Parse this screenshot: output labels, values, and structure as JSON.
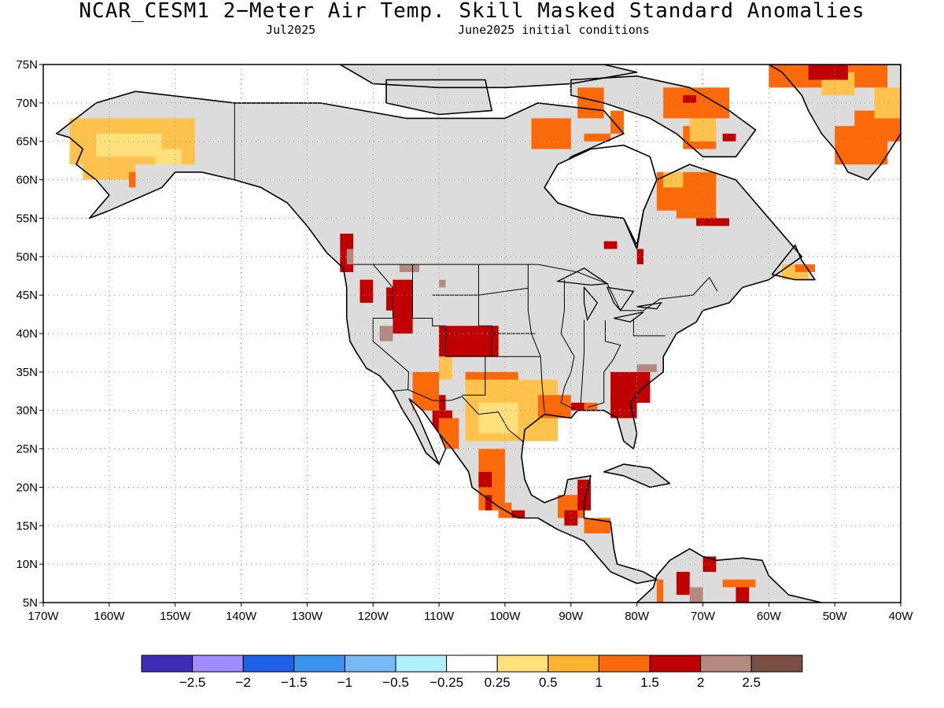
{
  "title": "NCAR_CESM1 2−Meter Air Temp. Skill Masked Standard Anomalies",
  "subtitle_month": "Jul2025",
  "subtitle_ic": "June2025 initial conditions",
  "map": {
    "lon_range": [
      -170,
      -40
    ],
    "lat_range": [
      5,
      75
    ],
    "grid": true,
    "mask_color": "#dcdcdc",
    "lat_ticks": [
      {
        "value": 75,
        "label": "75N"
      },
      {
        "value": 70,
        "label": "70N"
      },
      {
        "value": 65,
        "label": "65N"
      },
      {
        "value": 60,
        "label": "60N"
      },
      {
        "value": 55,
        "label": "55N"
      },
      {
        "value": 50,
        "label": "50N"
      },
      {
        "value": 45,
        "label": "45N"
      },
      {
        "value": 40,
        "label": "40N"
      },
      {
        "value": 35,
        "label": "35N"
      },
      {
        "value": 30,
        "label": "30N"
      },
      {
        "value": 25,
        "label": "25N"
      },
      {
        "value": 20,
        "label": "20N"
      },
      {
        "value": 15,
        "label": "15N"
      },
      {
        "value": 10,
        "label": "10N"
      },
      {
        "value": 5,
        "label": "5N"
      }
    ],
    "lon_ticks": [
      {
        "value": -170,
        "label": "170W"
      },
      {
        "value": -160,
        "label": "160W"
      },
      {
        "value": -150,
        "label": "150W"
      },
      {
        "value": -140,
        "label": "140W"
      },
      {
        "value": -130,
        "label": "130W"
      },
      {
        "value": -120,
        "label": "120W"
      },
      {
        "value": -110,
        "label": "110W"
      },
      {
        "value": -100,
        "label": "100W"
      },
      {
        "value": -90,
        "label": "90W"
      },
      {
        "value": -80,
        "label": "80W"
      },
      {
        "value": -70,
        "label": "70W"
      },
      {
        "value": -60,
        "label": "60W"
      },
      {
        "value": -50,
        "label": "50W"
      },
      {
        "value": -40,
        "label": "40W"
      }
    ]
  },
  "colorbar": {
    "colors": [
      "#3d2eb8",
      "#a18cff",
      "#2060e8",
      "#3d94f0",
      "#78b9f5",
      "#b0f0ff",
      "#ffffff",
      "#ffe07a",
      "#ffb32e",
      "#fa6a0a",
      "#c00000",
      "#b48a80",
      "#7a5045"
    ],
    "labels": [
      "−2.5",
      "−2",
      "−1.5",
      "−1",
      "−0.5",
      "−0.25",
      "0.25",
      "0.5",
      "1",
      "1.5",
      "2",
      "2.5"
    ]
  },
  "anomaly_regions": [
    {
      "name": "alaska-west",
      "color": "#ffc34d",
      "cells": [
        [
          -166,
          -147,
          62,
          68
        ],
        [
          -164,
          -156,
          60,
          62
        ]
      ]
    },
    {
      "name": "alaska-yellow",
      "color": "#ffe07a",
      "cells": [
        [
          -162,
          -152,
          63,
          66
        ],
        [
          -153,
          -149,
          62,
          64
        ]
      ]
    },
    {
      "name": "alaska-south",
      "color": "#fa6a0a",
      "cells": [
        [
          -157,
          -156,
          59,
          61
        ]
      ]
    },
    {
      "name": "pacific-nw",
      "color": "#c00000",
      "cells": [
        [
          -125,
          -123,
          48,
          53
        ],
        [
          -122,
          -120,
          44,
          47
        ],
        [
          -117,
          -114,
          40,
          47
        ],
        [
          -118,
          -116,
          43,
          46
        ]
      ]
    },
    {
      "name": "pacific-nw-brown",
      "color": "#b48a80",
      "cells": [
        [
          -124,
          -123,
          49,
          51
        ],
        [
          -116,
          -113,
          48,
          49
        ],
        [
          -119,
          -117,
          39,
          41
        ],
        [
          -110,
          -109,
          46,
          47
        ]
      ]
    },
    {
      "name": "southwest-red",
      "color": "#c00000",
      "cells": [
        [
          -110,
          -101,
          37,
          41
        ],
        [
          -103,
          -101,
          38,
          41
        ],
        [
          -112,
          -109,
          30,
          32
        ],
        [
          -111,
          -108,
          26,
          30
        ]
      ]
    },
    {
      "name": "southwest-orange",
      "color": "#fa6a0a",
      "cells": [
        [
          -114,
          -110,
          30,
          35
        ],
        [
          -106,
          -98,
          33,
          35
        ],
        [
          -110,
          -107,
          25,
          29
        ]
      ]
    },
    {
      "name": "texas-yellow",
      "color": "#ffc34d",
      "cells": [
        [
          -106,
          -92,
          26,
          34
        ],
        [
          -110,
          -108,
          34,
          37
        ],
        [
          -102,
          -96,
          28,
          32
        ]
      ]
    },
    {
      "name": "texas-light",
      "color": "#ffe07a",
      "cells": [
        [
          -104,
          -98,
          27,
          31
        ]
      ]
    },
    {
      "name": "gulf-coast",
      "color": "#fa6a0a",
      "cells": [
        [
          -95,
          -90,
          29,
          32
        ],
        [
          -88,
          -86,
          30,
          31
        ]
      ]
    },
    {
      "name": "southeast-red",
      "color": "#c00000",
      "cells": [
        [
          -84,
          -78,
          31,
          35
        ],
        [
          -84,
          -80,
          29,
          32
        ],
        [
          -90,
          -88,
          30,
          31
        ]
      ]
    },
    {
      "name": "southeast-brown",
      "color": "#b48a80",
      "cells": [
        [
          -80,
          -77,
          35,
          36
        ]
      ]
    },
    {
      "name": "mexico-orange",
      "color": "#fa6a0a",
      "cells": [
        [
          -104,
          -100,
          17,
          25
        ],
        [
          -101,
          -99,
          16,
          18
        ],
        [
          -103,
          -100,
          21,
          23
        ]
      ]
    },
    {
      "name": "mexico-red",
      "color": "#c00000",
      "cells": [
        [
          -103,
          -102,
          17,
          19
        ],
        [
          -104,
          -102,
          20,
          22
        ],
        [
          -99,
          -97,
          16,
          17
        ]
      ]
    },
    {
      "name": "central-america",
      "color": "#fa6a0a",
      "cells": [
        [
          -92,
          -88,
          16,
          19
        ],
        [
          -88,
          -84,
          14,
          16
        ]
      ]
    },
    {
      "name": "central-america-red",
      "color": "#c00000",
      "cells": [
        [
          -89,
          -87,
          17,
          21
        ],
        [
          -91,
          -89,
          15,
          17
        ]
      ]
    },
    {
      "name": "hudson-nw",
      "color": "#fa6a0a",
      "cells": [
        [
          -96,
          -90,
          64,
          68
        ],
        [
          -89,
          -85,
          68,
          72
        ],
        [
          -84,
          -82,
          66,
          69
        ],
        [
          -88,
          -84,
          65,
          66
        ]
      ]
    },
    {
      "name": "baffin",
      "color": "#fa6a0a",
      "cells": [
        [
          -76,
          -66,
          68,
          72
        ],
        [
          -73,
          -68,
          64,
          67
        ]
      ]
    },
    {
      "name": "baffin-yellow",
      "color": "#ffc34d",
      "cells": [
        [
          -72,
          -68,
          65,
          68
        ]
      ]
    },
    {
      "name": "baffin-red",
      "color": "#c00000",
      "cells": [
        [
          -73,
          -71,
          70,
          71
        ],
        [
          -67,
          -65,
          65,
          66
        ]
      ]
    },
    {
      "name": "labrador",
      "color": "#fa6a0a",
      "cells": [
        [
          -77,
          -68,
          56,
          61
        ],
        [
          -74,
          -68,
          55,
          56
        ]
      ]
    },
    {
      "name": "labrador-red",
      "color": "#c00000",
      "cells": [
        [
          -71,
          -66,
          54,
          55
        ]
      ]
    },
    {
      "name": "labrador-yellow",
      "color": "#ffc34d",
      "cells": [
        [
          -76,
          -73,
          59,
          61
        ]
      ]
    },
    {
      "name": "greenland",
      "color": "#fa6a0a",
      "cells": [
        [
          -60,
          -42,
          72,
          75
        ],
        [
          -50,
          -42,
          62,
          67
        ],
        [
          -47,
          -40,
          65,
          69
        ]
      ]
    },
    {
      "name": "greenland-yellow",
      "color": "#ffc34d",
      "cells": [
        [
          -44,
          -40,
          68,
          72
        ],
        [
          -52,
          -47,
          71,
          74
        ]
      ]
    },
    {
      "name": "greenland-red",
      "color": "#c00000",
      "cells": [
        [
          -54,
          -48,
          73,
          75
        ]
      ]
    },
    {
      "name": "newfoundland",
      "color": "#ffc34d",
      "cells": [
        [
          -58,
          -54,
          47,
          49
        ]
      ]
    },
    {
      "name": "newfoundland-orange",
      "color": "#fa6a0a",
      "cells": [
        [
          -56,
          -53,
          48,
          49
        ]
      ]
    },
    {
      "name": "south-america-red",
      "color": "#c00000",
      "cells": [
        [
          -74,
          -72,
          6,
          9
        ],
        [
          -65,
          -63,
          5,
          7
        ],
        [
          -70,
          -68,
          9,
          11
        ]
      ]
    },
    {
      "name": "south-america-orange",
      "color": "#fa6a0a",
      "cells": [
        [
          -67,
          -62,
          7,
          8
        ],
        [
          -77,
          -76,
          5,
          8
        ]
      ]
    },
    {
      "name": "south-america-brown",
      "color": "#b48a80",
      "cells": [
        [
          -72,
          -70,
          5,
          7
        ]
      ]
    },
    {
      "name": "hudson-bay-red",
      "color": "#c00000",
      "cells": [
        [
          -80,
          -79,
          49,
          51
        ],
        [
          -85,
          -83,
          51,
          52
        ]
      ]
    }
  ]
}
